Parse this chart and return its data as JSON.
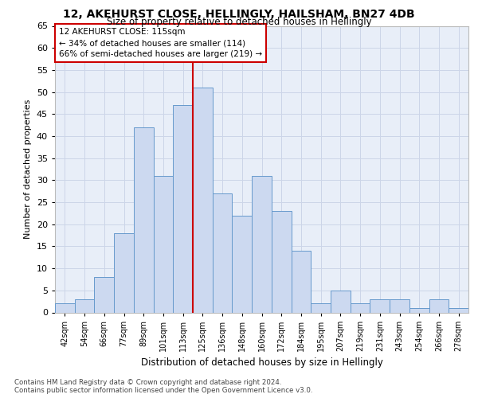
{
  "title1": "12, AKEHURST CLOSE, HELLINGLY, HAILSHAM, BN27 4DB",
  "title2": "Size of property relative to detached houses in Hellingly",
  "xlabel": "Distribution of detached houses by size in Hellingly",
  "ylabel": "Number of detached properties",
  "categories": [
    "42sqm",
    "54sqm",
    "66sqm",
    "77sqm",
    "89sqm",
    "101sqm",
    "113sqm",
    "125sqm",
    "136sqm",
    "148sqm",
    "160sqm",
    "172sqm",
    "184sqm",
    "195sqm",
    "207sqm",
    "219sqm",
    "231sqm",
    "243sqm",
    "254sqm",
    "266sqm",
    "278sqm"
  ],
  "values": [
    2,
    3,
    8,
    18,
    42,
    31,
    47,
    51,
    27,
    22,
    31,
    23,
    14,
    2,
    5,
    2,
    3,
    3,
    1,
    3,
    1
  ],
  "bar_color": "#ccd9f0",
  "bar_edgecolor": "#6699cc",
  "vline_x": 6.5,
  "vline_color": "#cc0000",
  "annotation_line1": "12 AKEHURST CLOSE: 115sqm",
  "annotation_line2": "← 34% of detached houses are smaller (114)",
  "annotation_line3": "66% of semi-detached houses are larger (219) →",
  "annotation_box_color": "#cc0000",
  "annotation_box_facecolor": "#ffffff",
  "footer1": "Contains HM Land Registry data © Crown copyright and database right 2024.",
  "footer2": "Contains public sector information licensed under the Open Government Licence v3.0.",
  "ylim": [
    0,
    65
  ],
  "yticks": [
    0,
    5,
    10,
    15,
    20,
    25,
    30,
    35,
    40,
    45,
    50,
    55,
    60,
    65
  ],
  "grid_color": "#ccd5e8",
  "bg_color": "#e8eef8"
}
